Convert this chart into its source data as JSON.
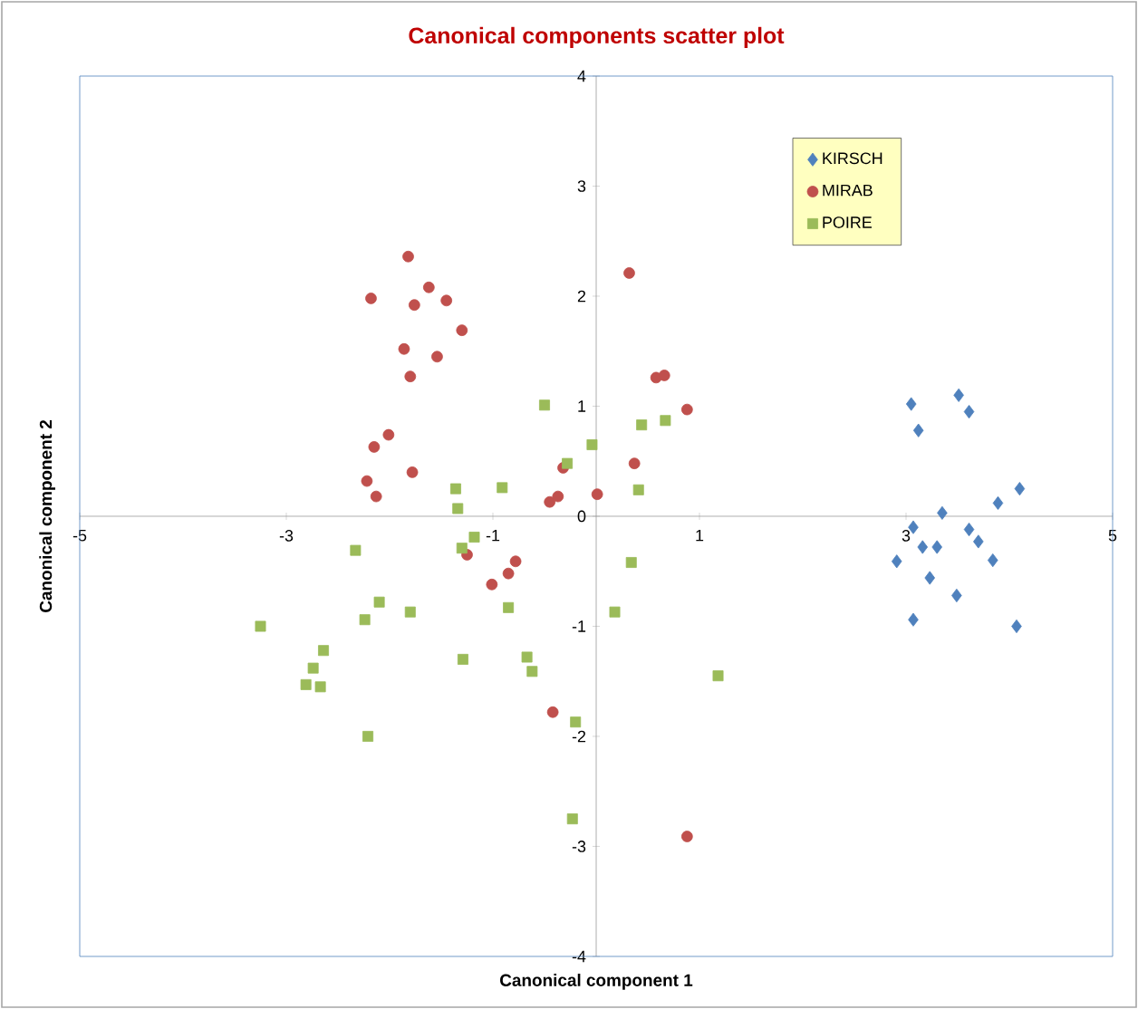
{
  "chart_data": {
    "type": "scatter",
    "title": "Canonical components scatter plot",
    "xlabel": "Canonical component 1",
    "ylabel": "Canonical component 2",
    "xlim": [
      -5,
      5
    ],
    "ylim": [
      -4,
      4
    ],
    "xticks": [
      -5,
      -3,
      -1,
      1,
      3,
      5
    ],
    "yticks": [
      -4,
      -3,
      -2,
      -1,
      0,
      1,
      2,
      3,
      4
    ],
    "grid": false,
    "legend": "top right",
    "series": [
      {
        "name": "KIRSCH",
        "color": "#4f81bd",
        "marker": "diamond",
        "x": [
          3.05,
          3.51,
          3.61,
          3.12,
          4.1,
          3.89,
          3.35,
          3.07,
          3.61,
          3.7,
          3.16,
          3.3,
          3.84,
          2.91,
          3.23,
          3.49,
          3.07,
          4.07
        ],
        "values": [
          1.02,
          1.1,
          0.95,
          0.78,
          0.25,
          0.12,
          0.03,
          -0.1,
          -0.12,
          -0.23,
          -0.28,
          -0.28,
          -0.4,
          -0.41,
          -0.56,
          -0.72,
          -0.94,
          -1.0
        ]
      },
      {
        "name": "MIRAB",
        "color": "#c0504d",
        "marker": "circle",
        "x": [
          -1.82,
          -1.62,
          -2.18,
          -1.76,
          -1.45,
          -1.3,
          -1.86,
          -1.54,
          -1.8,
          -2.01,
          -2.15,
          -2.22,
          -1.78,
          -2.13,
          -0.45,
          -0.37,
          -0.32,
          0.32,
          0.58,
          0.66,
          0.88,
          0.37,
          0.01,
          -0.78,
          -0.85,
          -1.01,
          -1.25,
          -0.42,
          0.88
        ],
        "values": [
          2.36,
          2.08,
          1.98,
          1.92,
          1.96,
          1.69,
          1.52,
          1.45,
          1.27,
          0.74,
          0.63,
          0.32,
          0.4,
          0.18,
          0.13,
          0.18,
          0.44,
          2.21,
          1.26,
          1.28,
          0.97,
          0.48,
          0.2,
          -0.41,
          -0.52,
          -0.62,
          -0.35,
          -1.78,
          -2.91
        ]
      },
      {
        "name": "POIRE",
        "color": "#9bbb59",
        "marker": "square",
        "x": [
          -0.5,
          -0.04,
          -0.28,
          -1.36,
          -0.91,
          -1.34,
          0.44,
          0.67,
          0.41,
          0.34,
          0.18,
          1.18,
          -0.2,
          -0.23,
          -1.18,
          -1.3,
          -2.33,
          -2.1,
          -2.24,
          -1.8,
          -3.25,
          -2.64,
          -2.74,
          -2.81,
          -2.67,
          -2.21,
          -1.29,
          -0.85,
          -0.67,
          -0.62
        ],
        "values": [
          1.01,
          0.65,
          0.48,
          0.25,
          0.26,
          0.07,
          0.83,
          0.87,
          0.24,
          -0.42,
          -0.87,
          -1.45,
          -1.87,
          -2.75,
          -0.19,
          -0.29,
          -0.31,
          -0.78,
          -0.94,
          -0.87,
          -1.0,
          -1.22,
          -1.38,
          -1.53,
          -1.55,
          -2.0,
          -1.3,
          -0.83,
          -1.28,
          -1.41
        ]
      }
    ]
  }
}
